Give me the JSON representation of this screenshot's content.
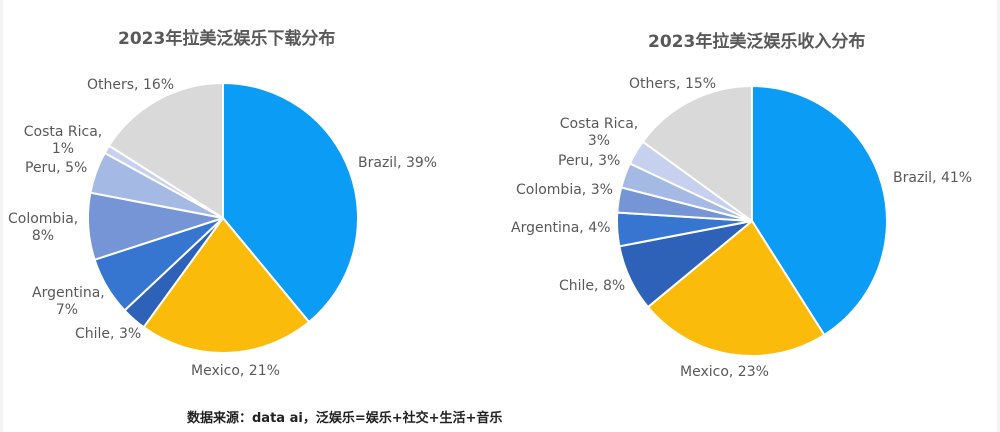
{
  "source_note": "数据来源：data ai，泛娱乐=娱乐+社交+生活+音乐",
  "chart_data": [
    {
      "type": "pie",
      "title": "2023年拉美泛娱乐下载分布",
      "start_angle": "12 o'clock, clockwise",
      "categories": [
        "Brazil",
        "Mexico",
        "Chile",
        "Argentina",
        "Colombia",
        "Peru",
        "Costa Rica",
        "Others"
      ],
      "values": [
        39,
        21,
        3,
        7,
        8,
        5,
        1,
        16
      ],
      "unit": "%",
      "labels": [
        "Brazil, 39%",
        "Mexico, 21%",
        "Chile, 3%",
        "Argentina, 7%",
        "Colombia, 8%",
        "Peru, 5%",
        "Costa Rica, 1%",
        "Others, 16%"
      ],
      "colors": [
        "#0b9cf5",
        "#fbbb0a",
        "#2d62b8",
        "#3676d0",
        "#7595d6",
        "#a5b9e5",
        "#c7d0ee",
        "#d9d9d9"
      ]
    },
    {
      "type": "pie",
      "title": "2023年拉美泛娱乐收入分布",
      "start_angle": "12 o'clock, clockwise",
      "categories": [
        "Brazil",
        "Mexico",
        "Chile",
        "Argentina",
        "Colombia",
        "Peru",
        "Costa Rica",
        "Others"
      ],
      "values": [
        41,
        23,
        8,
        4,
        3,
        3,
        3,
        15
      ],
      "unit": "%",
      "labels": [
        "Brazil, 41%",
        "Mexico, 23%",
        "Chile, 8%",
        "Argentina, 4%",
        "Colombia, 3%",
        "Peru, 3%",
        "Costa Rica, 3%",
        "Others, 15%"
      ],
      "colors": [
        "#0b9cf5",
        "#fbbb0a",
        "#2d62b8",
        "#3676d0",
        "#7595d6",
        "#a5b9e5",
        "#c7d0ee",
        "#d9d9d9"
      ]
    }
  ],
  "left": {
    "title": "2023年拉美泛娱乐下载分布",
    "labels": {
      "brazil": "Brazil, 39%",
      "mexico": "Mexico, 21%",
      "chile": "Chile, 3%",
      "argentina_1": "Argentina,",
      "argentina_2": "7%",
      "colombia_1": "Colombia,",
      "colombia_2": "8%",
      "peru": "Peru, 5%",
      "costa_rica_1": "Costa Rica,",
      "costa_rica_2": "1%",
      "others": "Others, 16%"
    }
  },
  "right": {
    "title": "2023年拉美泛娱乐收入分布",
    "labels": {
      "brazil": "Brazil, 41%",
      "mexico": "Mexico, 23%",
      "chile": "Chile, 8%",
      "argentina": "Argentina, 4%",
      "colombia": "Colombia, 3%",
      "peru": "Peru, 3%",
      "costa_rica_1": "Costa Rica,",
      "costa_rica_2": "3%",
      "others": "Others, 15%"
    }
  }
}
